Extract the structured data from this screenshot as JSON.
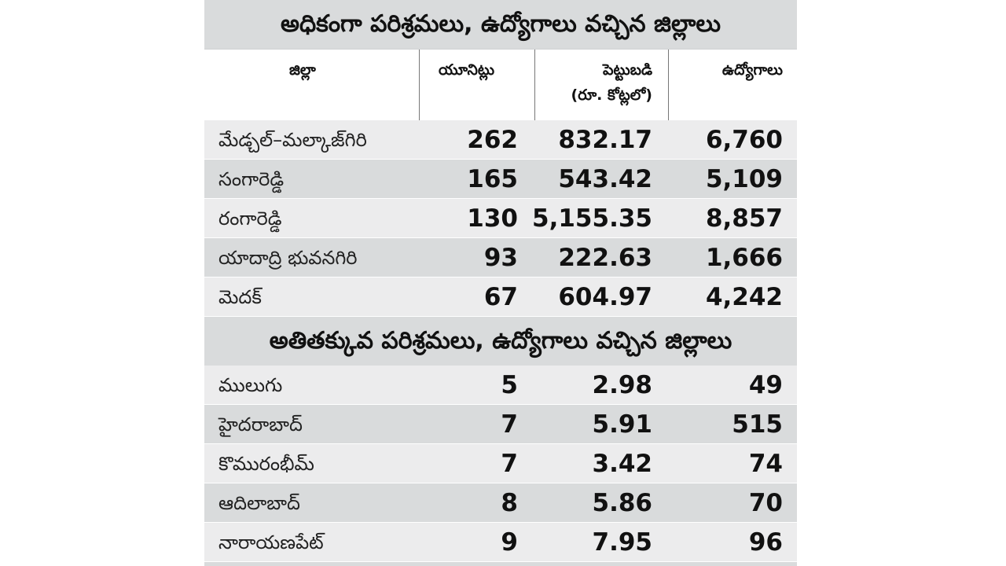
{
  "title_top": "అధికంగా పరిశ్రమలు, ఉద్యోగాలు వచ్చిన జిల్లాలు",
  "title_bottom": "అతితక్కువ పరిశ్రమలు, ఉద్యోగాలు వచ్చిన జిల్లాలు",
  "headers": {
    "district": "జిల్లా",
    "units": "యూనిట్లు",
    "investment_line1": "పెట్టుబడి",
    "investment_line2": "(రూ. కోట్లలో)",
    "jobs": "ఉద్యోగాలు"
  },
  "top_rows": [
    {
      "name": "మేడ్చల్‌–మల్కాజ్‌గిరి",
      "units": "262",
      "investment": "832.17",
      "jobs": "6,760"
    },
    {
      "name": "సంగారెడ్డి",
      "units": "165",
      "investment": "543.42",
      "jobs": "5,109"
    },
    {
      "name": "రంగారెడ్డి",
      "units": "130",
      "investment": "5,155.35",
      "jobs": "8,857"
    },
    {
      "name": "యాదాద్రి భువనగిరి",
      "units": "93",
      "investment": "222.63",
      "jobs": "1,666"
    },
    {
      "name": "మెదక్‌",
      "units": "67",
      "investment": "604.97",
      "jobs": "4,242"
    }
  ],
  "bottom_rows": [
    {
      "name": "ములుగు",
      "units": "5",
      "investment": "2.98",
      "jobs": "49"
    },
    {
      "name": "హైదరాబాద్‌",
      "units": "7",
      "investment": "5.91",
      "jobs": "515"
    },
    {
      "name": "కొమురంభీమ్‌",
      "units": "7",
      "investment": "3.42",
      "jobs": "74"
    },
    {
      "name": "ఆదిలాబాద్‌",
      "units": "8",
      "investment": "5.86",
      "jobs": "70"
    },
    {
      "name": "నారాయణపేట్‌",
      "units": "9",
      "investment": "7.95",
      "jobs": "96"
    }
  ]
}
